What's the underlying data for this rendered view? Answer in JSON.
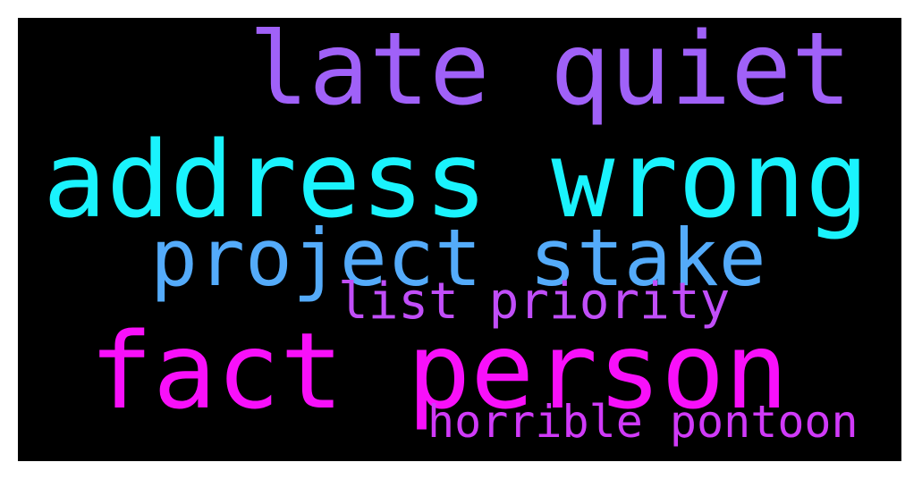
{
  "words": [
    {
      "text": "late quiet",
      "color": "#a061f8"
    },
    {
      "text": "address wrong",
      "color": "#1af3fd"
    },
    {
      "text": "project stake",
      "color": "#54abfa"
    },
    {
      "text": "list priority",
      "color": "#c14ef9"
    },
    {
      "text": "fact person",
      "color": "#f810fa"
    },
    {
      "text": "horrible pontoon",
      "color": "#d03af8"
    }
  ],
  "background_color": "#000000"
}
